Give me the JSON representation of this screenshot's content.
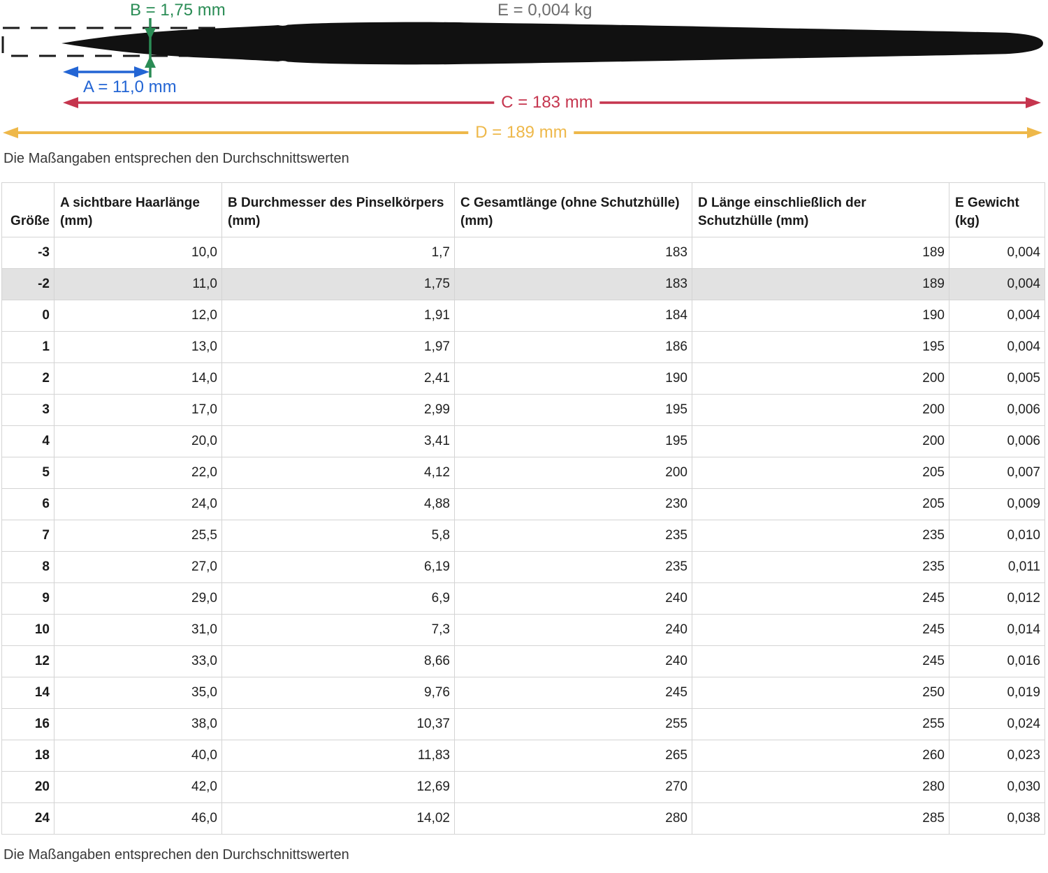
{
  "diagram": {
    "labels": {
      "b": "B = 1,75 mm",
      "e": "E = 0,004 kg",
      "a": "A = 11,0 mm",
      "c": "C = 183 mm",
      "d": "D = 189 mm"
    },
    "colors": {
      "dimension_a_blue": "#2365d4",
      "dimension_b_green": "#2a8c55",
      "dimension_c_red": "#c5354e",
      "dimension_d_yellow": "#eeb84a",
      "weight_e_gray": "#6d6d6d",
      "brush_black": "#111111",
      "cap_outline_black": "#1a1a1a"
    }
  },
  "caption_top": "Die Maßangaben entsprechen den Durchschnittswerten",
  "caption_bottom": "Die Maßangaben entsprechen den Durchschnittswerten",
  "table": {
    "columns": [
      "Größe",
      "A sichtbare Haarlänge (mm)",
      "B Durchmesser des Pinselkörpers (mm)",
      "C Gesamtlänge (ohne Schutzhülle) (mm)",
      "D Länge einschließlich der Schutzhülle (mm)",
      "E Gewicht (kg)"
    ],
    "highlight_row_index": 1,
    "row_highlight_color": "#e2e2e2",
    "table_border_color": "#d4d4d4",
    "rows": [
      [
        "-3",
        "10,0",
        "1,7",
        "183",
        "189",
        "0,004"
      ],
      [
        "-2",
        "11,0",
        "1,75",
        "183",
        "189",
        "0,004"
      ],
      [
        "0",
        "12,0",
        "1,91",
        "184",
        "190",
        "0,004"
      ],
      [
        "1",
        "13,0",
        "1,97",
        "186",
        "195",
        "0,004"
      ],
      [
        "2",
        "14,0",
        "2,41",
        "190",
        "200",
        "0,005"
      ],
      [
        "3",
        "17,0",
        "2,99",
        "195",
        "200",
        "0,006"
      ],
      [
        "4",
        "20,0",
        "3,41",
        "195",
        "200",
        "0,006"
      ],
      [
        "5",
        "22,0",
        "4,12",
        "200",
        "205",
        "0,007"
      ],
      [
        "6",
        "24,0",
        "4,88",
        "230",
        "205",
        "0,009"
      ],
      [
        "7",
        "25,5",
        "5,8",
        "235",
        "235",
        "0,010"
      ],
      [
        "8",
        "27,0",
        "6,19",
        "235",
        "235",
        "0,011"
      ],
      [
        "9",
        "29,0",
        "6,9",
        "240",
        "245",
        "0,012"
      ],
      [
        "10",
        "31,0",
        "7,3",
        "240",
        "245",
        "0,014"
      ],
      [
        "12",
        "33,0",
        "8,66",
        "240",
        "245",
        "0,016"
      ],
      [
        "14",
        "35,0",
        "9,76",
        "245",
        "250",
        "0,019"
      ],
      [
        "16",
        "38,0",
        "10,37",
        "255",
        "255",
        "0,024"
      ],
      [
        "18",
        "40,0",
        "11,83",
        "265",
        "260",
        "0,023"
      ],
      [
        "20",
        "42,0",
        "12,69",
        "270",
        "280",
        "0,030"
      ],
      [
        "24",
        "46,0",
        "14,02",
        "280",
        "285",
        "0,038"
      ]
    ]
  }
}
